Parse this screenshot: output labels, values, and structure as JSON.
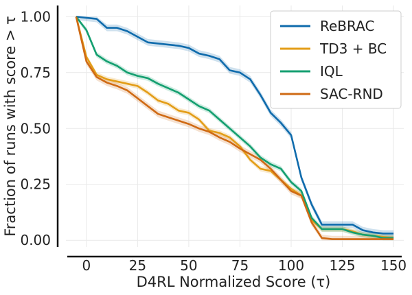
{
  "chart_data": {
    "type": "line",
    "title": "",
    "xlabel": "D4RL Normalized Score (τ)",
    "ylabel": "Fraction of runs with score > τ",
    "xlim": [
      -10,
      155
    ],
    "ylim": [
      -0.03,
      1.05
    ],
    "xticks": [
      0,
      25,
      50,
      75,
      100,
      125,
      150
    ],
    "yticks": [
      0.0,
      0.25,
      0.5,
      0.75,
      1.0
    ],
    "ytick_labels": [
      "0.00",
      "0.25",
      "0.50",
      "0.75",
      "1.00"
    ],
    "grid": true,
    "legend_position": "top-right",
    "colors": {
      "ReBRAC": "#0f6bac",
      "TD3 + BC": "#e39d17",
      "IQL": "#149f70",
      "SAC-RND": "#cf6a14"
    },
    "series": [
      {
        "name": "ReBRAC",
        "x": [
          -5,
          0,
          5,
          10,
          15,
          20,
          25,
          30,
          35,
          40,
          45,
          50,
          55,
          60,
          65,
          70,
          75,
          80,
          85,
          90,
          95,
          100,
          105,
          110,
          115,
          120,
          125,
          130,
          135,
          140,
          145,
          150
        ],
        "y": [
          1.0,
          0.995,
          0.99,
          0.95,
          0.95,
          0.935,
          0.91,
          0.885,
          0.88,
          0.875,
          0.87,
          0.86,
          0.835,
          0.825,
          0.81,
          0.76,
          0.75,
          0.72,
          0.65,
          0.57,
          0.525,
          0.47,
          0.28,
          0.16,
          0.07,
          0.07,
          0.07,
          0.07,
          0.045,
          0.035,
          0.03,
          0.03
        ],
        "band": 0.015
      },
      {
        "name": "TD3 + BC",
        "x": [
          -5,
          0,
          5,
          10,
          15,
          20,
          25,
          30,
          35,
          40,
          45,
          50,
          55,
          60,
          65,
          70,
          75,
          80,
          85,
          90,
          95,
          100,
          105,
          110,
          115,
          120,
          125,
          130,
          135,
          140,
          145,
          150
        ],
        "y": [
          1.0,
          0.82,
          0.74,
          0.72,
          0.71,
          0.7,
          0.69,
          0.66,
          0.625,
          0.61,
          0.58,
          0.57,
          0.54,
          0.49,
          0.48,
          0.46,
          0.42,
          0.36,
          0.32,
          0.31,
          0.27,
          0.23,
          0.2,
          0.09,
          0.05,
          0.05,
          0.05,
          0.04,
          0.025,
          0.02,
          0.015,
          0.01
        ],
        "band": 0.012
      },
      {
        "name": "IQL",
        "x": [
          -5,
          0,
          5,
          10,
          15,
          20,
          25,
          30,
          35,
          40,
          45,
          50,
          55,
          60,
          65,
          70,
          75,
          80,
          85,
          90,
          95,
          100,
          105,
          110,
          115,
          120,
          125,
          130,
          135,
          140,
          145,
          150
        ],
        "y": [
          1.0,
          0.94,
          0.83,
          0.8,
          0.78,
          0.75,
          0.735,
          0.725,
          0.7,
          0.68,
          0.66,
          0.63,
          0.6,
          0.58,
          0.54,
          0.5,
          0.46,
          0.42,
          0.37,
          0.34,
          0.32,
          0.26,
          0.22,
          0.1,
          0.05,
          0.05,
          0.05,
          0.035,
          0.025,
          0.02,
          0.01,
          0.01
        ],
        "band": 0.012
      },
      {
        "name": "SAC-RND",
        "x": [
          -5,
          0,
          5,
          10,
          15,
          20,
          25,
          30,
          35,
          40,
          45,
          50,
          55,
          60,
          65,
          70,
          75,
          80,
          85,
          90,
          95,
          100,
          105,
          110,
          115,
          120,
          125,
          130,
          135,
          140,
          145,
          150
        ],
        "y": [
          1.0,
          0.8,
          0.73,
          0.705,
          0.69,
          0.67,
          0.635,
          0.6,
          0.565,
          0.55,
          0.535,
          0.52,
          0.5,
          0.485,
          0.46,
          0.44,
          0.41,
          0.385,
          0.36,
          0.32,
          0.27,
          0.22,
          0.2,
          0.08,
          0.01,
          0.005,
          0.005,
          0.005,
          0.005,
          0.005,
          0.005,
          0.005
        ],
        "band": 0.015
      }
    ]
  }
}
